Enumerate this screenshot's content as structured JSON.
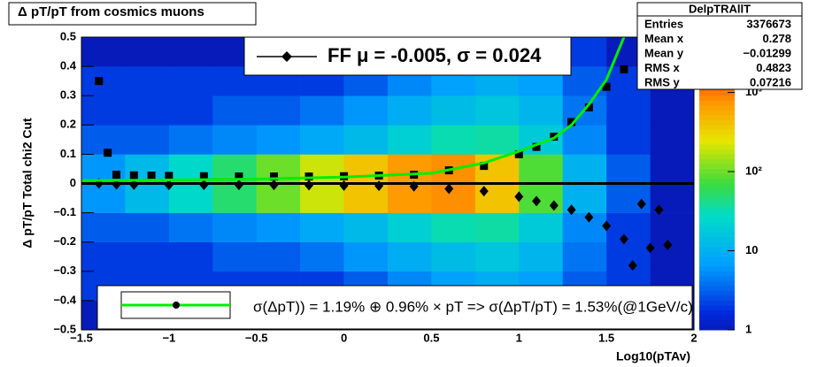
{
  "chart_data": {
    "type": "scatter",
    "title": "Δ pT/pT from cosmics muons",
    "x_label": "Log10(pTAv)",
    "y_label": "Δ pT/pT   Total chi2 Cut",
    "xlim": [
      -1.5,
      2
    ],
    "ylim": [
      -0.5,
      0.5
    ],
    "xticks": [
      {
        "value": -1.5,
        "label": "−1.5"
      },
      {
        "value": -1,
        "label": "−1"
      },
      {
        "value": -0.5,
        "label": "−0.5"
      },
      0,
      0.5,
      1,
      1.5,
      2
    ],
    "yticks": [
      {
        "value": -0.5,
        "label": "−0.5"
      },
      {
        "value": -0.4,
        "label": "−0.4"
      },
      {
        "value": -0.3,
        "label": "−0.3"
      },
      {
        "value": -0.2,
        "label": "−0.2"
      },
      {
        "value": -0.1,
        "label": "−0.1"
      },
      0,
      0.1,
      0.2,
      0.3,
      0.4,
      0.5
    ],
    "xbins": [
      -1.5,
      -1.25,
      -1,
      -0.75,
      -0.5,
      -0.25,
      0,
      0.25,
      0.5,
      0.75,
      1,
      1.25,
      1.5,
      1.75,
      2
    ],
    "ybins": [
      -0.5,
      -0.4,
      -0.3,
      -0.2,
      -0.1,
      0,
      0.1,
      0.2,
      0.3,
      0.4,
      0.5
    ],
    "z": [
      [
        1,
        1,
        1,
        1,
        1,
        1,
        2,
        3,
        4,
        5,
        4,
        2,
        1,
        1
      ],
      [
        2,
        2,
        2,
        2,
        2,
        2,
        3,
        5,
        7,
        9,
        7,
        3,
        2,
        1
      ],
      [
        2,
        2,
        2,
        3,
        3,
        4,
        6,
        9,
        13,
        16,
        11,
        4,
        2,
        1
      ],
      [
        3,
        3,
        4,
        5,
        6,
        8,
        12,
        20,
        32,
        35,
        18,
        5,
        2,
        1
      ],
      [
        6,
        12,
        25,
        50,
        100,
        200,
        400,
        700,
        800,
        400,
        80,
        10,
        3,
        1
      ],
      [
        6,
        12,
        25,
        50,
        100,
        200,
        400,
        700,
        800,
        400,
        80,
        10,
        3,
        1
      ],
      [
        3,
        3,
        4,
        5,
        6,
        8,
        12,
        20,
        32,
        35,
        18,
        5,
        2,
        1
      ],
      [
        2,
        2,
        2,
        3,
        3,
        4,
        6,
        9,
        13,
        16,
        11,
        4,
        2,
        1
      ],
      [
        2,
        2,
        2,
        2,
        2,
        2,
        3,
        5,
        7,
        9,
        7,
        3,
        2,
        1
      ],
      [
        1,
        1,
        1,
        1,
        1,
        1,
        2,
        3,
        4,
        5,
        4,
        2,
        1,
        1
      ]
    ],
    "zlim": [
      1,
      5000
    ],
    "zticks": [
      1,
      10,
      {
        "value": 100,
        "label": "10²"
      },
      {
        "value": 1000,
        "label": "10³"
      }
    ],
    "series": [
      {
        "name": "FF μ = -0.005, σ =   0.024",
        "kind": "diamond",
        "color": "#000000",
        "x": [
          -1.4,
          -1.3,
          -1.2,
          -1.0,
          -0.8,
          -0.6,
          -0.4,
          -0.2,
          0,
          0.2,
          0.4,
          0.6,
          0.8,
          1.0,
          1.1,
          1.2,
          1.3,
          1.4,
          1.5,
          1.6,
          1.65,
          1.7,
          1.75,
          1.8,
          1.85
        ],
        "values": [
          0,
          -0.003,
          -0.004,
          -0.005,
          -0.005,
          -0.005,
          -0.005,
          -0.006,
          -0.007,
          -0.008,
          -0.01,
          -0.018,
          -0.026,
          -0.045,
          -0.06,
          -0.075,
          -0.09,
          -0.115,
          -0.145,
          -0.19,
          -0.28,
          -0.07,
          -0.22,
          -0.09,
          -0.21
        ]
      },
      {
        "kind": "square",
        "color": "#000000",
        "x": [
          -1.4,
          -1.35,
          -1.3,
          -1.2,
          -1.1,
          -1.0,
          -0.8,
          -0.6,
          -0.4,
          -0.2,
          0,
          0.2,
          0.4,
          0.6,
          0.8,
          1.0,
          1.1,
          1.2,
          1.3,
          1.4,
          1.5,
          1.6,
          1.7
        ],
        "values": [
          0.35,
          0.105,
          0.03,
          0.028,
          0.027,
          0.026,
          0.025,
          0.024,
          0.024,
          0.024,
          0.025,
          0.027,
          0.03,
          0.045,
          0.06,
          0.1,
          0.125,
          0.16,
          0.21,
          0.26,
          0.33,
          0.39,
          0.46
        ]
      },
      {
        "kind": "line",
        "color": "#000000",
        "x": [
          -1.5,
          2
        ],
        "values": [
          0,
          0
        ]
      },
      {
        "name": "σ(ΔpT)) =  1.19% ⊕  0.96% × pT => σ(ΔpT/pT) =  1.53%(@1GeV/c)",
        "kind": "line",
        "color": "#00ee00",
        "x": [
          -1.5,
          -1.0,
          -0.5,
          0,
          0.5,
          0.8,
          1.0,
          1.2,
          1.3,
          1.4,
          1.5,
          1.6
        ],
        "values": [
          0.01,
          0.012,
          0.015,
          0.022,
          0.035,
          0.07,
          0.11,
          0.155,
          0.2,
          0.27,
          0.355,
          0.5
        ]
      }
    ],
    "stats": {
      "title": "DelpTRAllT",
      "rows": [
        [
          "Entries",
          "3376673"
        ],
        [
          "Mean x",
          "0.278"
        ],
        [
          "Mean y",
          "−0.01299"
        ],
        [
          "RMS x",
          "0.4823"
        ],
        [
          "RMS y",
          "0.07216"
        ]
      ]
    }
  }
}
